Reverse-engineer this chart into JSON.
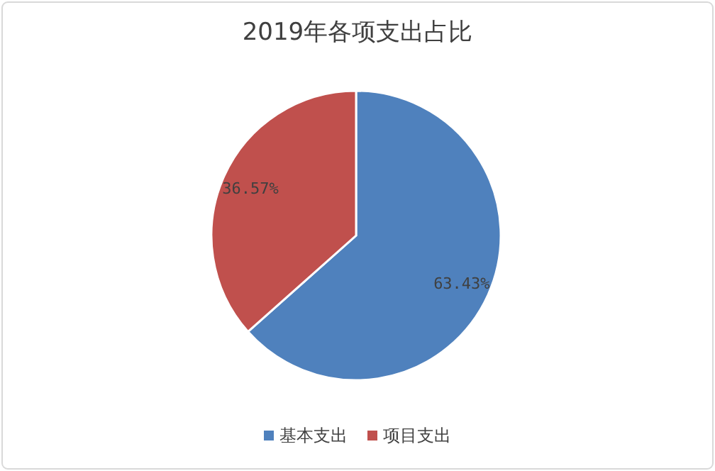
{
  "chart_data": {
    "type": "pie",
    "title": "2019年各项支出占比",
    "categories": [
      "基本支出",
      "项目支出"
    ],
    "values": [
      63.43,
      36.57
    ],
    "colors": [
      "#4f81bd",
      "#c0504d"
    ],
    "value_labels": [
      "63.43%",
      "36.57%"
    ],
    "legend": "bottom"
  }
}
